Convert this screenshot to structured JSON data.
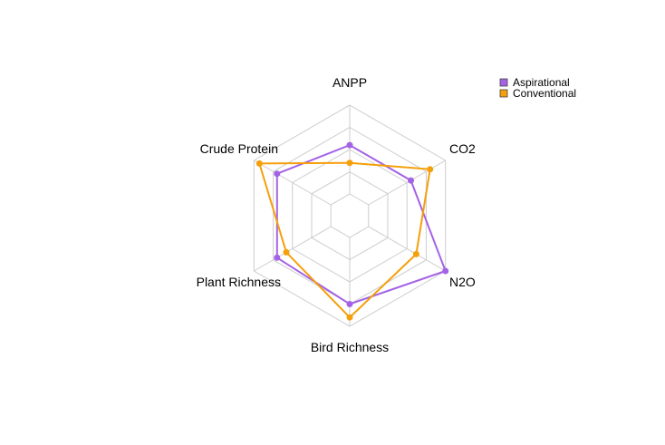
{
  "chart_data": {
    "type": "radar",
    "axes": [
      "ANPP",
      "CO2",
      "N2O",
      "Bird Richness",
      "Plant Richness",
      "Crude Protein"
    ],
    "range": [
      0,
      1
    ],
    "grid_levels": 5,
    "grid": true,
    "legend_position": "top-right",
    "series": [
      {
        "name": "Aspirational",
        "color": "#a463e6",
        "values": [
          0.55,
          0.55,
          1.0,
          0.75,
          0.7,
          0.7
        ]
      },
      {
        "name": "Conventional",
        "color": "#f59f0a",
        "values": [
          0.35,
          0.8,
          0.62,
          0.9,
          0.58,
          0.93
        ]
      }
    ]
  }
}
